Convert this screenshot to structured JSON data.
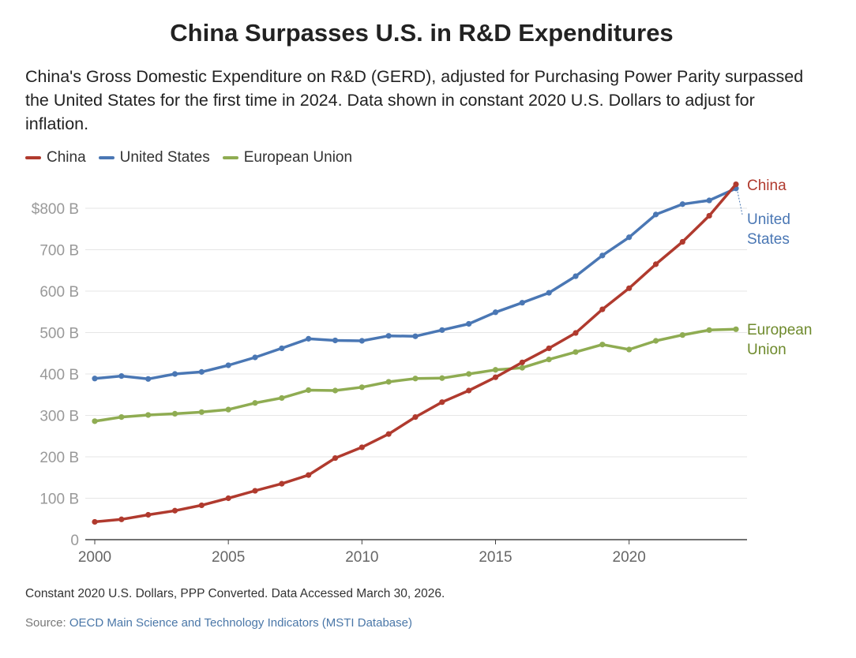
{
  "title": "China Surpasses U.S. in R&D Expenditures",
  "subtitle": "China's Gross Domestic Expenditure on R&D (GERD), adjusted for Purchasing Power Parity surpassed the United States for the first time in 2024. Data shown in constant 2020 U.S. Dollars to adjust for inflation.",
  "footnote": "Constant 2020 U.S. Dollars, PPP Converted. Data Accessed March 30, 2026.",
  "source_prefix": "Source:",
  "source_link": "OECD Main Science and Technology Indicators (MSTI Database)",
  "colors": {
    "china": "#b03a2e",
    "us": "#4a77b4",
    "eu": "#8fac52",
    "eu_label": "#6e8a2c",
    "grid": "#e6e6e6",
    "axis": "#444444",
    "tick": "#999999"
  },
  "chart_data": {
    "type": "line",
    "x": [
      2000,
      2001,
      2002,
      2003,
      2004,
      2005,
      2006,
      2007,
      2008,
      2009,
      2010,
      2011,
      2012,
      2013,
      2014,
      2015,
      2016,
      2017,
      2018,
      2019,
      2020,
      2021,
      2022,
      2023,
      2024
    ],
    "series": [
      {
        "name": "China",
        "key": "china",
        "end_label": [
          "China"
        ],
        "values": [
          43,
          49,
          60,
          70,
          83,
          100,
          118,
          135,
          156,
          197,
          223,
          255,
          296,
          332,
          360,
          392,
          428,
          462,
          499,
          556,
          607,
          665,
          719,
          782,
          858
        ]
      },
      {
        "name": "United States",
        "key": "us",
        "end_label": [
          "United",
          "States"
        ],
        "values": [
          389,
          395,
          388,
          400,
          405,
          421,
          440,
          462,
          485,
          481,
          480,
          492,
          491,
          506,
          521,
          549,
          572,
          596,
          636,
          686,
          730,
          785,
          810,
          819,
          848
        ]
      },
      {
        "name": "European Union",
        "key": "eu",
        "end_label": [
          "European",
          "Union"
        ],
        "values": [
          286,
          296,
          301,
          304,
          308,
          314,
          330,
          342,
          361,
          360,
          368,
          381,
          389,
          390,
          400,
          410,
          415,
          435,
          453,
          471,
          459,
          480,
          494,
          506,
          508
        ]
      }
    ],
    "yticks": [
      0,
      100,
      200,
      300,
      400,
      500,
      600,
      700,
      800
    ],
    "ytick_labels": [
      "0",
      "100 B",
      "200 B",
      "300 B",
      "400 B",
      "500 B",
      "600 B",
      "700 B",
      "$800 B"
    ],
    "xticks": [
      2000,
      2005,
      2010,
      2015,
      2020
    ],
    "xtick_labels": [
      "2000",
      "2005",
      "2010",
      "2015",
      "2020"
    ],
    "ylim": [
      0,
      860
    ],
    "xlim": [
      2000,
      2024
    ],
    "grid": true,
    "legend_position": "top-left"
  }
}
